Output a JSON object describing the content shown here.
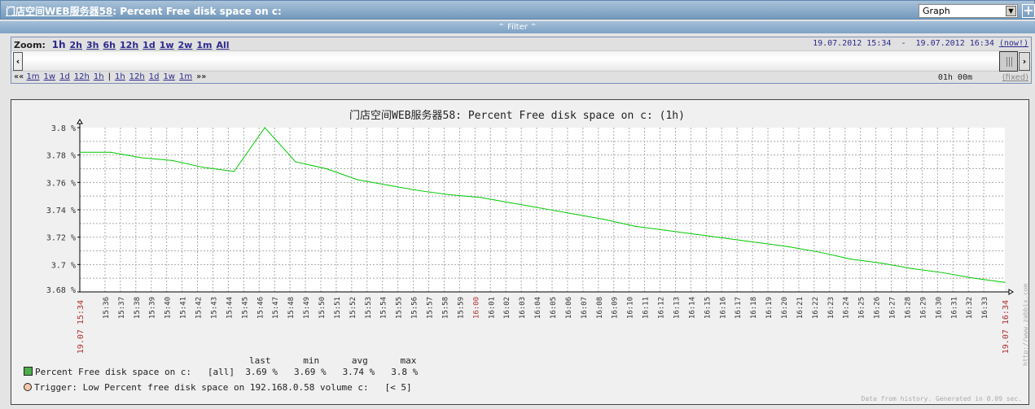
{
  "header": {
    "host_link": "门店空间WEB服务器58",
    "title_rest": ": Percent Free disk space on c:",
    "view_select": "Graph",
    "add_icon": "plus-icon"
  },
  "filter": {
    "label": "« Filter «",
    "display": "⌃ Filter ⌃"
  },
  "timecontrol": {
    "zoom_label": "Zoom:",
    "zoom_options": [
      "1h",
      "2h",
      "3h",
      "6h",
      "12h",
      "1d",
      "1w",
      "2w",
      "1m",
      "All"
    ],
    "zoom_selected": "1h",
    "range_from": "19.07.2012 15:34",
    "range_sep": "-",
    "range_to": "19.07.2012 16:34",
    "now_label": "(now!)",
    "back_prefix": "««",
    "back_links": [
      "1m",
      "1w",
      "1d",
      "12h",
      "1h"
    ],
    "sep": "|",
    "fwd_links": [
      "1h",
      "12h",
      "1d",
      "1w",
      "1m"
    ],
    "fwd_suffix": "»»",
    "duration": "01h 00m",
    "fixed_label": "(fixed)"
  },
  "chart_data": {
    "type": "line",
    "title": "门店空间WEB服务器58: Percent Free disk space on c: (1h)",
    "ylim": [
      3.68,
      3.8
    ],
    "y_ticks": [
      "3.8 %",
      "3.78 %",
      "3.76 %",
      "3.74 %",
      "3.72 %",
      "3.7 %",
      "3.68 %"
    ],
    "x_start_label": "19.07 15:34",
    "x_end_label": "19.07 16:34",
    "x_ticks": [
      "15:36",
      "15:37",
      "15:38",
      "15:39",
      "15:40",
      "15:41",
      "15:42",
      "15:43",
      "15:44",
      "15:45",
      "15:46",
      "15:47",
      "15:48",
      "15:49",
      "15:50",
      "15:51",
      "15:52",
      "15:53",
      "15:54",
      "15:55",
      "15:56",
      "15:57",
      "15:58",
      "15:59",
      "16:00",
      "16:01",
      "16:02",
      "16:03",
      "16:04",
      "16:05",
      "16:06",
      "16:07",
      "16:08",
      "16:09",
      "16:10",
      "16:11",
      "16:12",
      "16:13",
      "16:14",
      "16:15",
      "16:16",
      "16:17",
      "16:18",
      "16:19",
      "16:20",
      "16:21",
      "16:22",
      "16:23",
      "16:24",
      "16:25",
      "16:26",
      "16:27",
      "16:28",
      "16:29",
      "16:30",
      "16:31",
      "16:32",
      "16:33"
    ],
    "highlight_ticks": [
      "16:00"
    ],
    "grid": true,
    "series": [
      {
        "name": "Percent Free disk space on c:",
        "color": "#00c800",
        "x": [
          "15:34:22",
          "15:36:22",
          "15:38:22",
          "15:40:22",
          "15:42:22",
          "15:44:22",
          "15:46:22",
          "15:48:22",
          "15:50:22",
          "15:52:22",
          "15:54:22",
          "15:56:22",
          "15:58:22",
          "16:00:22",
          "16:02:22",
          "16:04:22",
          "16:06:22",
          "16:08:22",
          "16:10:22",
          "16:12:22",
          "16:14:22",
          "16:16:22",
          "16:18:22",
          "16:20:22",
          "16:22:22",
          "16:24:22",
          "16:26:22",
          "16:28:22",
          "16:30:22",
          "16:32:22",
          "16:34:22"
        ],
        "values": [
          3.782,
          3.782,
          3.778,
          3.776,
          3.771,
          3.768,
          3.8,
          3.775,
          3.77,
          3.762,
          3.758,
          3.754,
          3.751,
          3.749,
          3.745,
          3.741,
          3.737,
          3.733,
          3.728,
          3.725,
          3.722,
          3.719,
          3.716,
          3.713,
          3.709,
          3.704,
          3.701,
          3.697,
          3.694,
          3.69,
          3.687
        ]
      }
    ]
  },
  "legend": {
    "headers": [
      "last",
      "min",
      "avg",
      "max"
    ],
    "item": {
      "name": "Percent Free disk space on c:",
      "func": "[all]",
      "last": "3.69 %",
      "min": "3.69 %",
      "avg": "3.74 %",
      "max": "3.8 %",
      "color": "#4cae4c"
    },
    "trigger": {
      "text": "Trigger: Low Percent free disk space on 192.168.0.58 volume c:",
      "cond": "[< 5]",
      "color": "#f5c7a9"
    }
  },
  "watermark": "http://www.zabbix.com",
  "footer": "Data from history. Generated in 0.09 sec."
}
